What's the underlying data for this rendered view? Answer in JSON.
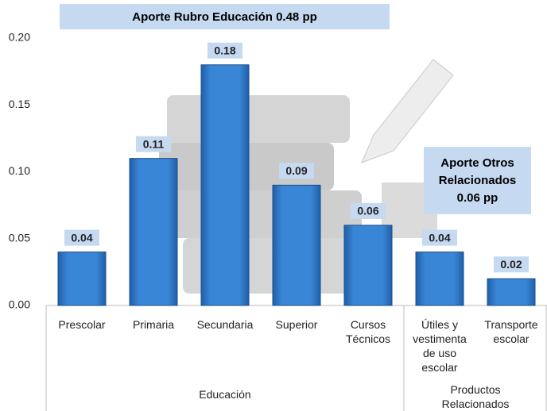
{
  "chart_data": {
    "type": "bar",
    "categories": [
      "Prescolar",
      "Primaria",
      "Secundaria",
      "Superior",
      "Cursos Técnicos",
      "Útiles y vestimenta de uso escolar",
      "Transporte escolar"
    ],
    "values": [
      0.04,
      0.11,
      0.18,
      0.09,
      0.06,
      0.04,
      0.02
    ],
    "color": "#2e75c6",
    "ylim": [
      0,
      0.2
    ],
    "yticks": [
      {
        "value": 0,
        "label": "0.00"
      },
      0.05,
      {
        "value": 0.1,
        "label": "0.10"
      },
      0.15,
      {
        "value": 0.2,
        "label": "0.20"
      }
    ],
    "groups": [
      {
        "label": "Educación",
        "count": 5
      },
      {
        "label": "Productos Relacionados",
        "count": 2
      }
    ],
    "annotations": [
      "Aporte Rubro Educación 0.48 pp",
      "Aporte Otros Relacionados 0.06 pp"
    ]
  }
}
